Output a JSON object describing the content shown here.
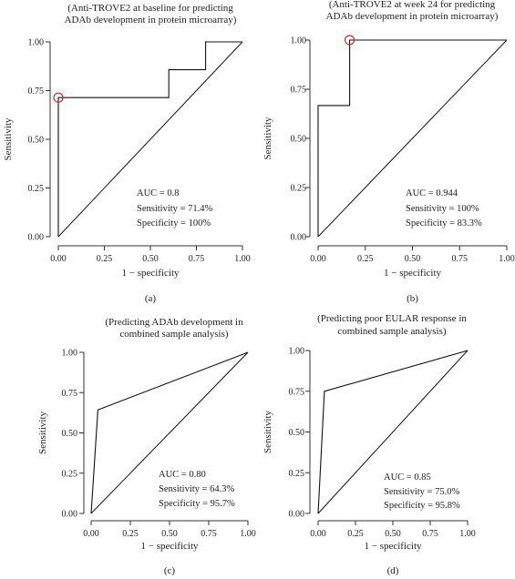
{
  "chart_data": [
    {
      "type": "line",
      "panel_label": "(a)",
      "title_lines": [
        "(Anti-TROVE2 at baseline for predicting",
        "ADAb development in protein microarray)"
      ],
      "xlabel": "1 − specificity",
      "ylabel": "Sensitivity",
      "xlim": [
        0,
        1
      ],
      "ylim": [
        0,
        1
      ],
      "xticks": [
        "0.00",
        "0.25",
        "0.50",
        "0.75",
        "1.00"
      ],
      "yticks": [
        "0.00",
        "0.25",
        "0.50",
        "0.75",
        "1.00"
      ],
      "roc_x": [
        0,
        0,
        0.6,
        0.6,
        0.8,
        0.8,
        1.0
      ],
      "roc_y": [
        0,
        0.714,
        0.714,
        0.857,
        0.857,
        1.0,
        1.0
      ],
      "highlight_point": {
        "x": 0,
        "y": 0.714
      },
      "annotations": [
        "AUC = 0.8",
        "Sensitivity = 71.4%",
        "Specificity = 100%"
      ]
    },
    {
      "type": "line",
      "panel_label": "(b)",
      "title_lines": [
        "(Anti-TROVE2 at week 24 for predicting",
        "ADAb development in protein microarray)"
      ],
      "xlabel": "1 − specificity",
      "ylabel": "Sensitivity",
      "xlim": [
        0,
        1
      ],
      "ylim": [
        0,
        1
      ],
      "xticks": [
        "0.00",
        "0.25",
        "0.50",
        "0.75",
        "1.00"
      ],
      "yticks": [
        "0.00",
        "0.25",
        "0.50",
        "0.75",
        "1.00"
      ],
      "roc_x": [
        0,
        0,
        0.167,
        0.167,
        1.0
      ],
      "roc_y": [
        0,
        0.667,
        0.667,
        1.0,
        1.0
      ],
      "highlight_point": {
        "x": 0.167,
        "y": 1.0
      },
      "annotations": [
        "AUC = 0.944",
        "Sensitivity = 100%",
        "Specificity = 83.3%"
      ]
    },
    {
      "type": "line",
      "panel_label": "(c)",
      "title_lines": [
        "(Predicting ADAb development in",
        "combined sample analysis)"
      ],
      "xlabel": "1 − specificity",
      "ylabel": "Sensitivity",
      "xlim": [
        0,
        1
      ],
      "ylim": [
        0,
        1
      ],
      "xticks": [
        "0.00",
        "0.25",
        "0.50",
        "0.75",
        "1.00"
      ],
      "yticks": [
        "0.00",
        "0.25",
        "0.50",
        "0.75",
        "1.00"
      ],
      "roc_x": [
        0,
        0.043,
        1.0
      ],
      "roc_y": [
        0,
        0.643,
        1.0
      ],
      "annotations": [
        "AUC = 0.80",
        "Sensitivity = 64.3%",
        "Specificity = 95.7%"
      ]
    },
    {
      "type": "line",
      "panel_label": "(d)",
      "title_lines": [
        "(Predicting poor EULAR response in",
        "combined sample analysis)"
      ],
      "xlabel": "1 − specificity",
      "ylabel": "Sensitivity",
      "xlim": [
        0,
        1
      ],
      "ylim": [
        0,
        1
      ],
      "xticks": [
        "0.00",
        "0.25",
        "0.50",
        "0.75",
        "1.00"
      ],
      "yticks": [
        "0.00",
        "0.25",
        "0.50",
        "0.75",
        "1.00"
      ],
      "roc_x": [
        0,
        0.042,
        1.0
      ],
      "roc_y": [
        0,
        0.75,
        1.0
      ],
      "annotations": [
        "AUC = 0.85",
        "Sensitivity = 75.0%",
        "Specificity = 95.8%"
      ]
    }
  ]
}
